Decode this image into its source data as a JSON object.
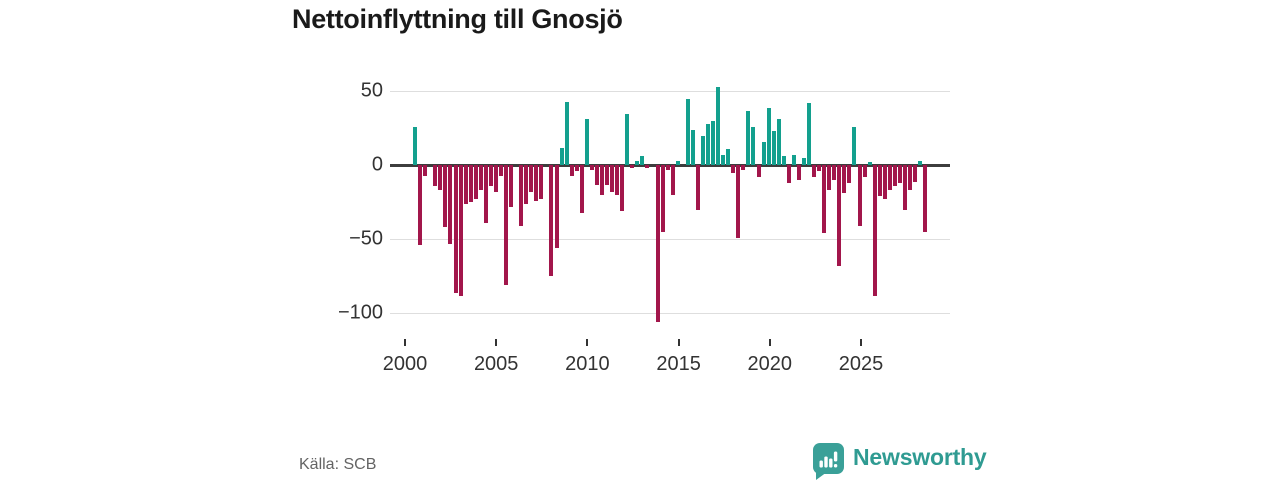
{
  "title": "Nettoinflyttning till Gnosjö",
  "source_note": "Källa: SCB",
  "brand": {
    "name": "Newsworthy"
  },
  "colors": {
    "positive": "#13a08e",
    "negative": "#a2164b",
    "brand_icon": "#3aa098",
    "brand_text": "#2f9b92",
    "gridline": "#dedede",
    "zero_line": "#3d3d3d",
    "axis_text": "#333333",
    "title_text": "#1a1a1a",
    "source_text": "#646464"
  },
  "chart_data": {
    "type": "bar",
    "title": "Nettoinflyttning till Gnosjö",
    "xlabel": "",
    "ylabel": "",
    "x_unit": "quarter",
    "start_period": "2000 Q1",
    "end_period": "2025 Q4",
    "grid": true,
    "ylim": [
      -115,
      62
    ],
    "y_ticks": [
      {
        "value": 50,
        "label": "50"
      },
      {
        "value": 0,
        "label": "0"
      },
      {
        "value": -50,
        "label": "−50"
      },
      {
        "value": -100,
        "label": "−100"
      }
    ],
    "x_ticks": [
      {
        "year": 2000,
        "label": "2000"
      },
      {
        "year": 2005,
        "label": "2005"
      },
      {
        "year": 2010,
        "label": "2010"
      },
      {
        "year": 2015,
        "label": "2015"
      },
      {
        "year": 2020,
        "label": "2020"
      },
      {
        "year": 2025,
        "label": "2025"
      }
    ],
    "values": [
      0,
      0,
      26,
      -54,
      -7,
      0,
      -14,
      -17,
      -42,
      -53,
      -86,
      -88,
      -26,
      -25,
      -23,
      -17,
      -39,
      -14,
      -18,
      -7,
      -81,
      -28,
      0,
      -41,
      -26,
      -18,
      -24,
      -23,
      0,
      -75,
      -56,
      12,
      43,
      -7,
      -4,
      -32,
      31,
      -3,
      -13,
      -20,
      -13,
      -18,
      -20,
      -31,
      35,
      -2,
      3,
      6,
      -2,
      0,
      -106,
      -45,
      -3,
      -20,
      3,
      0,
      45,
      24,
      -30,
      20,
      28,
      30,
      53,
      7,
      11,
      -5,
      -49,
      -3,
      37,
      26,
      -8,
      16,
      39,
      23,
      31,
      6,
      -12,
      7,
      -10,
      5,
      42,
      -8,
      -4,
      -46,
      -17,
      -10,
      -68,
      -19,
      -12,
      26,
      -41,
      -8,
      2,
      -88,
      -21,
      -23,
      -17,
      -14,
      -12,
      -30,
      -17,
      -11,
      3,
      -45
    ]
  }
}
